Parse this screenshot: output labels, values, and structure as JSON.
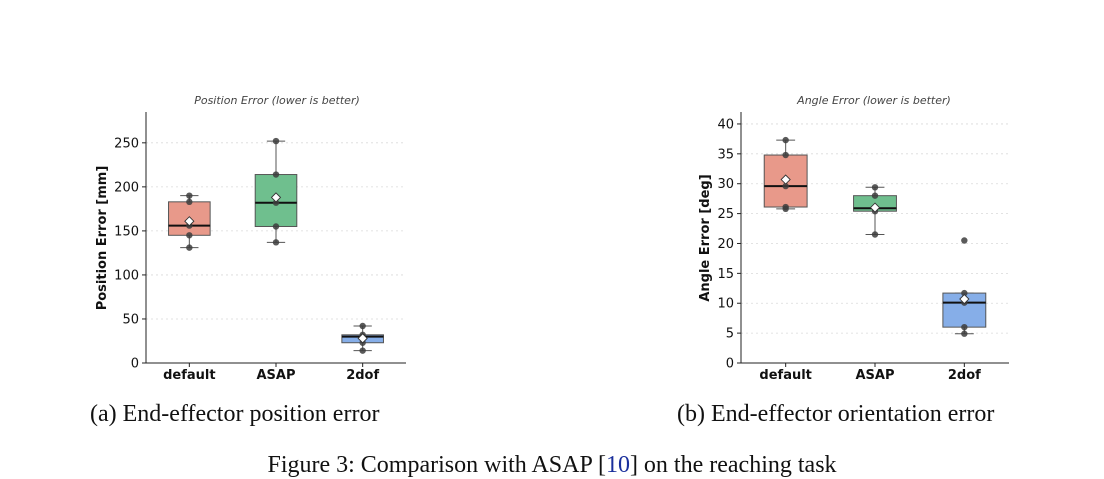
{
  "figure_caption": {
    "prefix": "Figure 3: Comparison with ASAP [",
    "ref": "10",
    "suffix": "] on the reaching task"
  },
  "chart_data": [
    {
      "type": "box",
      "subcaption": "(a) End-effector position error",
      "title": "Position Error (lower is better)",
      "xlabel": "",
      "ylabel": "Position Error [mm]",
      "ylim": [
        0,
        285
      ],
      "yticks": [
        0,
        50,
        100,
        150,
        200,
        250
      ],
      "grid": "horizontal dotted",
      "categories": [
        "default",
        "ASAP",
        "2dof"
      ],
      "colors": [
        "#e8998a",
        "#6fbf8e",
        "#86aee8"
      ],
      "boxes": [
        {
          "category": "default",
          "whisker_low": 131,
          "q1": 145,
          "median": 156,
          "q3": 183,
          "whisker_high": 190,
          "mean": 161,
          "points": [
            131,
            145,
            156,
            183,
            190
          ]
        },
        {
          "category": "ASAP",
          "whisker_low": 137,
          "q1": 155,
          "median": 182,
          "q3": 214,
          "whisker_high": 252,
          "mean": 188,
          "points": [
            137,
            155,
            182,
            214,
            252
          ]
        },
        {
          "category": "2dof",
          "whisker_low": 14,
          "q1": 23,
          "median": 30,
          "q3": 32,
          "whisker_high": 42,
          "mean": 28,
          "points": [
            14,
            23,
            30,
            32,
            42
          ]
        }
      ]
    },
    {
      "type": "box",
      "subcaption": "(b) End-effector orientation error",
      "title": "Angle Error (lower is better)",
      "xlabel": "",
      "ylabel": "Angle Error [deg]",
      "ylim": [
        0,
        42
      ],
      "yticks": [
        0,
        5,
        10,
        15,
        20,
        25,
        30,
        35,
        40
      ],
      "grid": "horizontal dotted",
      "categories": [
        "default",
        "ASAP",
        "2dof"
      ],
      "colors": [
        "#e8998a",
        "#6fbf8e",
        "#86aee8"
      ],
      "boxes": [
        {
          "category": "default",
          "whisker_low": 25.8,
          "q1": 26.1,
          "median": 29.6,
          "q3": 34.8,
          "whisker_high": 37.3,
          "mean": 30.7,
          "points": [
            25.8,
            26.1,
            29.6,
            34.8,
            37.3
          ]
        },
        {
          "category": "ASAP",
          "whisker_low": 21.5,
          "q1": 25.4,
          "median": 25.9,
          "q3": 28.0,
          "whisker_high": 29.4,
          "mean": 26.0,
          "points": [
            21.5,
            25.4,
            25.9,
            28.0,
            29.4
          ]
        },
        {
          "category": "2dof",
          "whisker_low": 4.9,
          "q1": 6.0,
          "median": 10.1,
          "q3": 11.7,
          "whisker_high": 11.7,
          "mean": 10.7,
          "points": [
            4.9,
            6.0,
            10.1,
            11.7
          ],
          "outliers": [
            20.5
          ]
        }
      ]
    }
  ]
}
